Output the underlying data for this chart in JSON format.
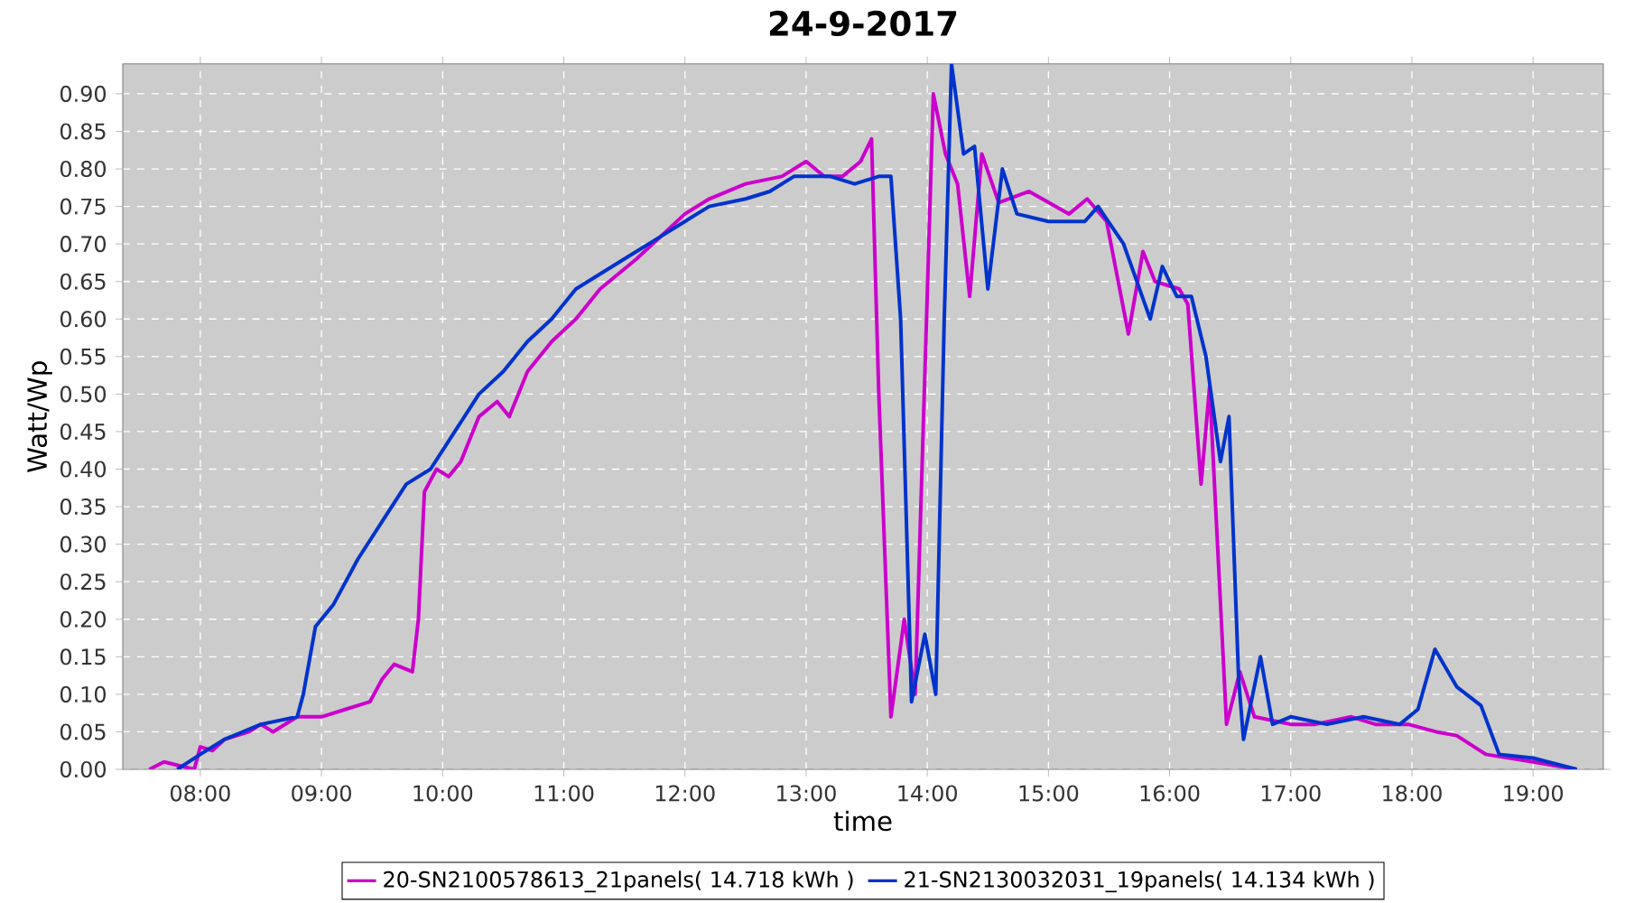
{
  "chart_data": {
    "type": "line",
    "title": "24-9-2017",
    "xlabel": "time",
    "ylabel": "Watt/Wp",
    "xlim": [
      7.36,
      19.58
    ],
    "ylim": [
      0,
      0.94
    ],
    "xticks": [
      {
        "value": 8,
        "label": "08:00"
      },
      {
        "value": 9,
        "label": "09:00"
      },
      {
        "value": 10,
        "label": "10:00"
      },
      {
        "value": 11,
        "label": "11:00"
      },
      {
        "value": 12,
        "label": "12:00"
      },
      {
        "value": 13,
        "label": "13:00"
      },
      {
        "value": 14,
        "label": "14:00"
      },
      {
        "value": 15,
        "label": "15:00"
      },
      {
        "value": 16,
        "label": "16:00"
      },
      {
        "value": 17,
        "label": "17:00"
      },
      {
        "value": 18,
        "label": "18:00"
      },
      {
        "value": 19,
        "label": "19:00"
      }
    ],
    "yticks": [
      {
        "value": 0,
        "label": "0.00"
      },
      {
        "value": 0.05,
        "label": "0.05"
      },
      {
        "value": 0.1,
        "label": "0.10"
      },
      {
        "value": 0.15,
        "label": "0.15"
      },
      {
        "value": 0.2,
        "label": "0.20"
      },
      {
        "value": 0.25,
        "label": "0.25"
      },
      {
        "value": 0.3,
        "label": "0.30"
      },
      {
        "value": 0.35,
        "label": "0.35"
      },
      {
        "value": 0.4,
        "label": "0.40"
      },
      {
        "value": 0.45,
        "label": "0.45"
      },
      {
        "value": 0.5,
        "label": "0.50"
      },
      {
        "value": 0.55,
        "label": "0.55"
      },
      {
        "value": 0.6,
        "label": "0.60"
      },
      {
        "value": 0.65,
        "label": "0.65"
      },
      {
        "value": 0.7,
        "label": "0.70"
      },
      {
        "value": 0.75,
        "label": "0.75"
      },
      {
        "value": 0.8,
        "label": "0.80"
      },
      {
        "value": 0.85,
        "label": "0.85"
      },
      {
        "value": 0.9,
        "label": "0.90"
      }
    ],
    "grid": true,
    "legend": "bottom",
    "marker": "none",
    "line_style": "solid",
    "series": [
      {
        "name": "20-SN2100578613_21panels( 14.718 kWh )",
        "color": "#cc00cc",
        "x": [
          7.58,
          7.7,
          7.95,
          8.0,
          8.1,
          8.2,
          8.4,
          8.5,
          8.6,
          8.8,
          9.0,
          9.2,
          9.4,
          9.5,
          9.6,
          9.75,
          9.8,
          9.85,
          9.95,
          10.05,
          10.15,
          10.3,
          10.45,
          10.55,
          10.7,
          10.9,
          11.1,
          11.3,
          11.6,
          11.8,
          12.0,
          12.2,
          12.5,
          12.8,
          13.0,
          13.15,
          13.3,
          13.45,
          13.54,
          13.6,
          13.7,
          13.81,
          13.9,
          14.05,
          14.15,
          14.25,
          14.35,
          14.45,
          14.59,
          14.84,
          15.17,
          15.32,
          15.48,
          15.66,
          15.78,
          15.88,
          16.08,
          16.15,
          16.26,
          16.33,
          16.47,
          16.58,
          16.7,
          17.0,
          17.2,
          17.5,
          17.7,
          17.97,
          18.2,
          18.37,
          18.61,
          19.0,
          19.36
        ],
        "values": [
          0.0,
          0.01,
          0.0,
          0.03,
          0.025,
          0.04,
          0.05,
          0.06,
          0.05,
          0.07,
          0.07,
          0.08,
          0.09,
          0.12,
          0.14,
          0.13,
          0.2,
          0.37,
          0.4,
          0.39,
          0.41,
          0.47,
          0.49,
          0.47,
          0.53,
          0.57,
          0.6,
          0.64,
          0.68,
          0.71,
          0.74,
          0.76,
          0.78,
          0.79,
          0.81,
          0.79,
          0.79,
          0.81,
          0.84,
          0.5,
          0.07,
          0.2,
          0.1,
          0.9,
          0.82,
          0.78,
          0.63,
          0.82,
          0.755,
          0.77,
          0.74,
          0.76,
          0.73,
          0.58,
          0.69,
          0.65,
          0.64,
          0.62,
          0.38,
          0.51,
          0.06,
          0.13,
          0.07,
          0.06,
          0.06,
          0.07,
          0.06,
          0.06,
          0.05,
          0.045,
          0.02,
          0.01,
          0.0
        ]
      },
      {
        "name": "21-SN2130032031_19panels( 14.134 kWh )",
        "color": "#0033cc",
        "x": [
          7.81,
          8.0,
          8.2,
          8.5,
          8.8,
          8.85,
          8.95,
          9.1,
          9.3,
          9.5,
          9.7,
          9.9,
          10.1,
          10.3,
          10.5,
          10.7,
          10.9,
          11.1,
          11.3,
          11.5,
          11.8,
          12.0,
          12.2,
          12.5,
          12.7,
          12.9,
          13.2,
          13.4,
          13.6,
          13.7,
          13.78,
          13.87,
          13.98,
          14.07,
          14.14,
          14.2,
          14.3,
          14.39,
          14.5,
          14.62,
          14.74,
          15.0,
          15.3,
          15.41,
          15.62,
          15.84,
          15.94,
          16.06,
          16.18,
          16.3,
          16.42,
          16.49,
          16.57,
          16.61,
          16.75,
          16.85,
          17.0,
          17.3,
          17.6,
          17.9,
          18.05,
          18.19,
          18.37,
          18.57,
          18.72,
          19.0,
          19.36
        ],
        "values": [
          0.0,
          0.02,
          0.04,
          0.06,
          0.07,
          0.1,
          0.19,
          0.22,
          0.28,
          0.33,
          0.38,
          0.4,
          0.45,
          0.5,
          0.53,
          0.57,
          0.6,
          0.64,
          0.66,
          0.68,
          0.71,
          0.73,
          0.75,
          0.76,
          0.77,
          0.79,
          0.79,
          0.78,
          0.79,
          0.79,
          0.6,
          0.09,
          0.18,
          0.1,
          0.6,
          0.94,
          0.82,
          0.83,
          0.64,
          0.8,
          0.74,
          0.73,
          0.73,
          0.75,
          0.7,
          0.6,
          0.67,
          0.63,
          0.63,
          0.55,
          0.41,
          0.47,
          0.12,
          0.04,
          0.15,
          0.06,
          0.07,
          0.06,
          0.07,
          0.06,
          0.08,
          0.16,
          0.11,
          0.085,
          0.02,
          0.015,
          0.0
        ]
      }
    ]
  }
}
